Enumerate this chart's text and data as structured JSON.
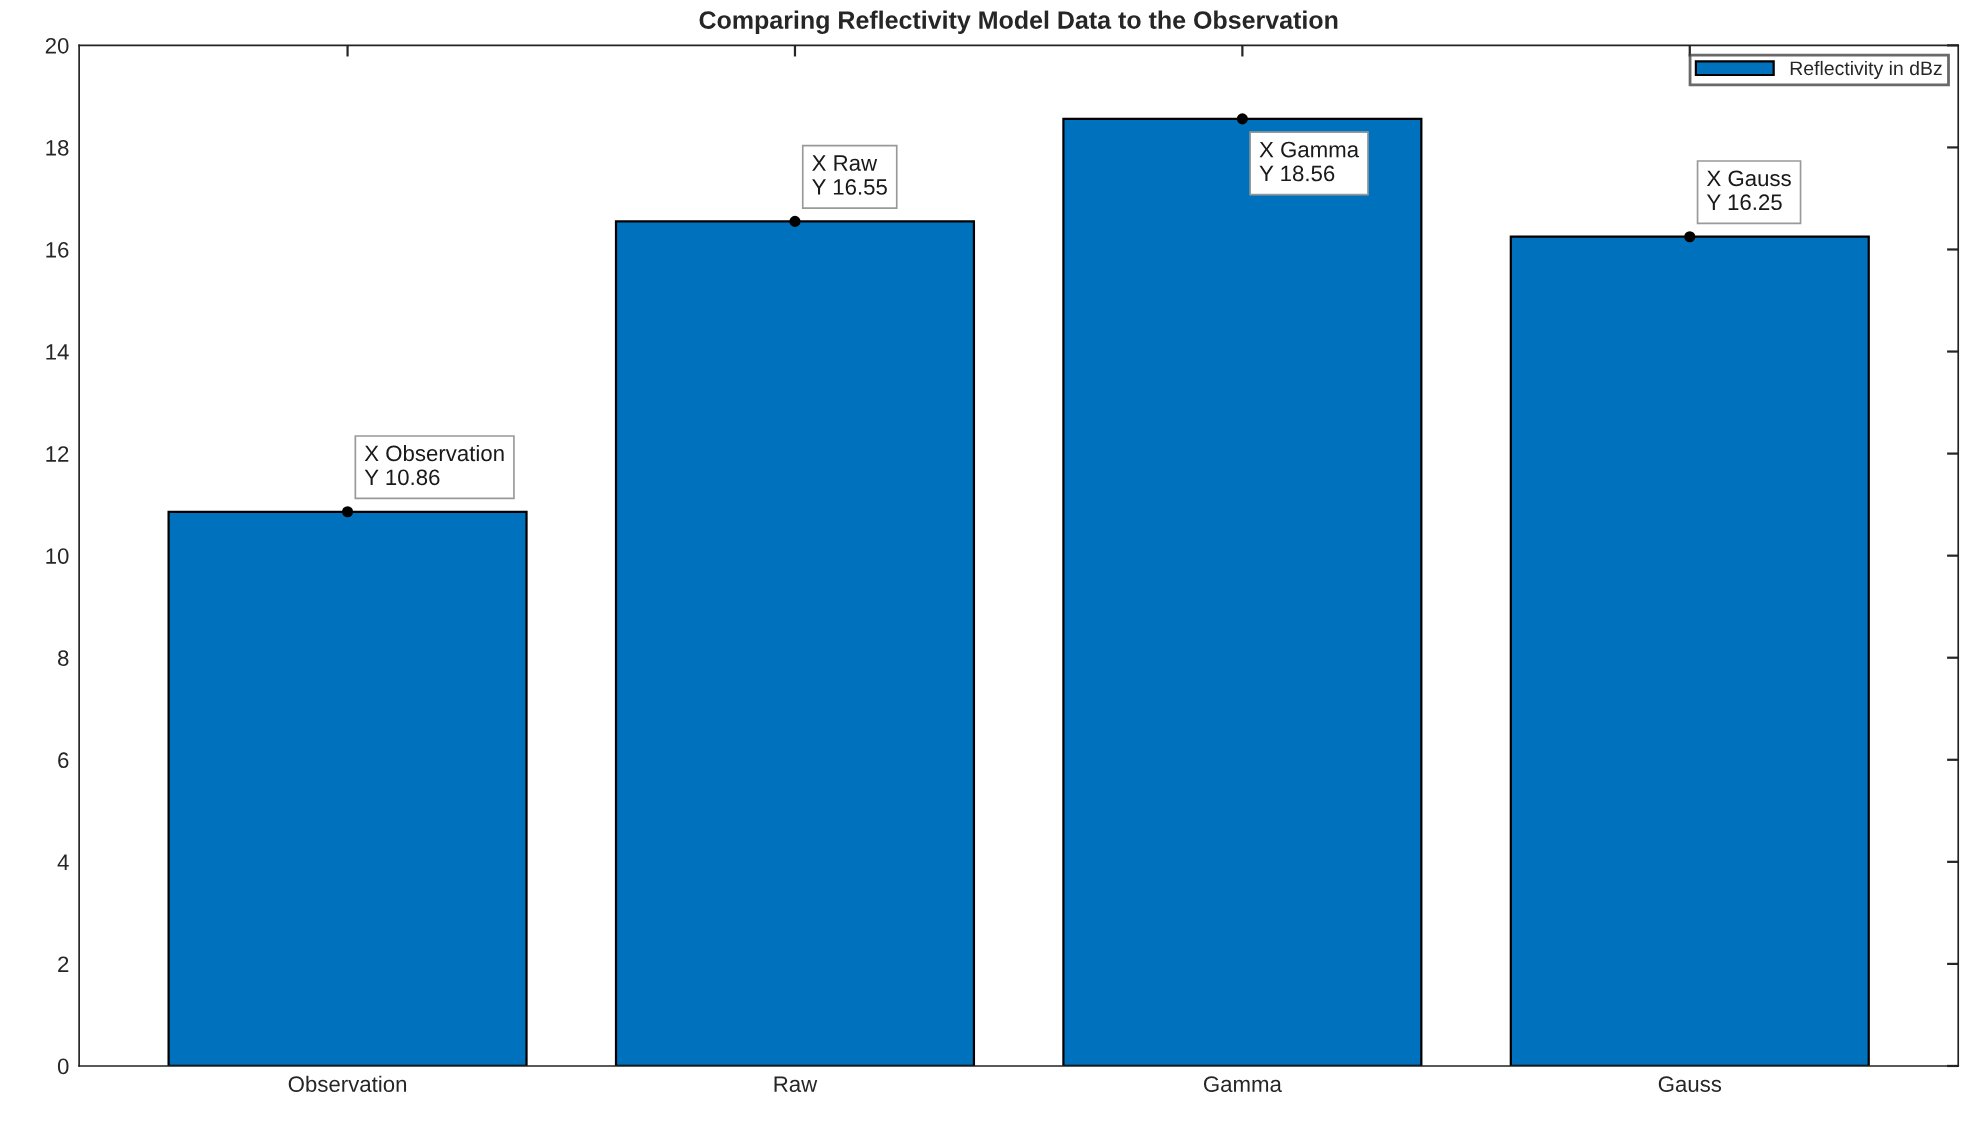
{
  "chart_data": {
    "type": "bar",
    "title": "Comparing Reflectivity Model Data to the Observation",
    "categories": [
      "Observation",
      "Raw",
      "Gamma",
      "Gauss"
    ],
    "series": [
      {
        "name": "Reflectivity in dBz",
        "color": "#0072bd",
        "values": [
          10.86,
          16.55,
          18.56,
          16.25
        ]
      }
    ],
    "ylim": [
      0,
      20
    ],
    "yticks": [
      0,
      2,
      4,
      6,
      8,
      10,
      12,
      14,
      16,
      18,
      20
    ],
    "legend": "top right",
    "grid": false,
    "annotations": [
      {
        "text": "X Observation\nY 10.86",
        "x": "Observation",
        "y": 10.86
      },
      {
        "text": "X Raw\nY 16.55",
        "x": "Raw",
        "y": 16.55
      },
      {
        "text": "X Gamma\nY 18.56",
        "x": "Gamma",
        "y": 18.56
      },
      {
        "text": "X Gauss\nY 16.25",
        "x": "Gauss",
        "y": 16.25
      }
    ]
  }
}
